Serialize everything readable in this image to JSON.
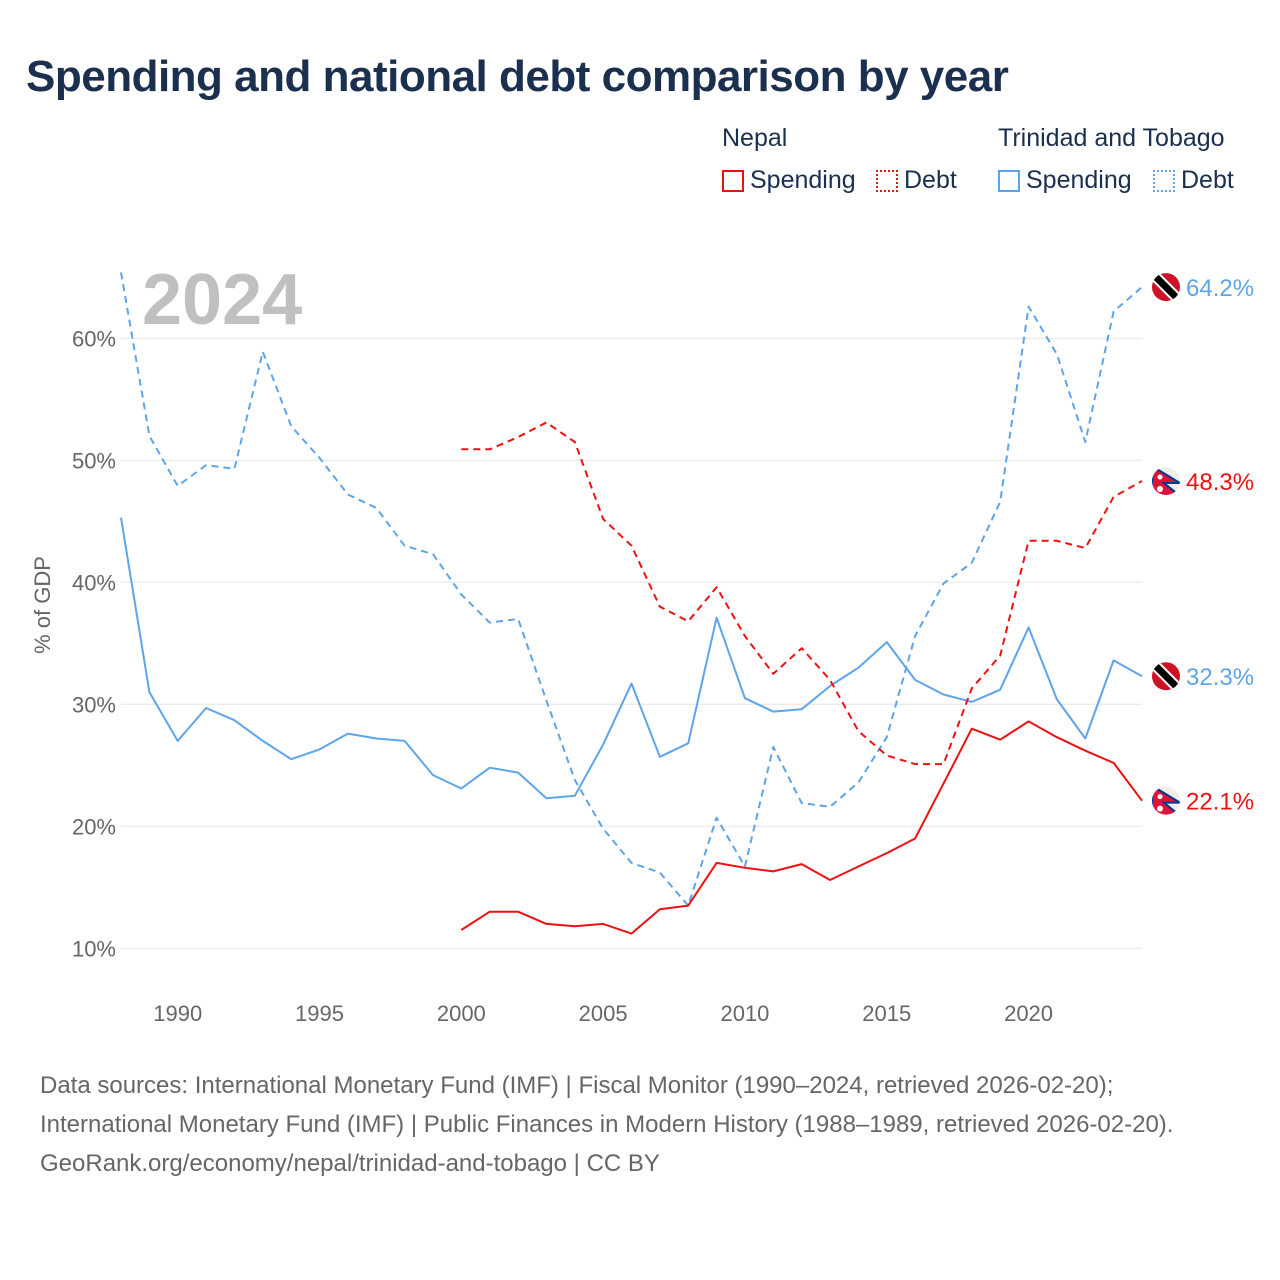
{
  "title": "Spending and national debt comparison by year",
  "legend": {
    "groups": [
      {
        "name": "Nepal",
        "items": [
          "Spending",
          "Debt"
        ]
      },
      {
        "name": "Trinidad and Tobago",
        "items": [
          "Spending",
          "Debt"
        ]
      }
    ]
  },
  "colors": {
    "nepal": "#ee1111",
    "tt": "#5ea4ea",
    "grid": "#e6e6e6",
    "year_label": "#c0c0c0",
    "axis_text": "#666666"
  },
  "chart_data": {
    "type": "line",
    "title": "Spending and national debt comparison by year",
    "ylabel": "% of GDP",
    "xlabel": "",
    "xlim": [
      1988,
      2024
    ],
    "ylim": [
      7.4,
      65.6
    ],
    "year_label": "2024",
    "x_ticks": [
      1990,
      1995,
      2000,
      2005,
      2010,
      2015,
      2020
    ],
    "y_ticks": [
      10,
      20,
      30,
      40,
      50,
      60
    ],
    "y_tick_labels": [
      "10%",
      "20%",
      "30%",
      "40%",
      "50%",
      "60%"
    ],
    "grid": true,
    "series": [
      {
        "name": "Trinidad and Tobago Debt",
        "country": "tt",
        "style": "dashed",
        "end_label": "64.2%",
        "x_start": 1988,
        "values": [
          65.4,
          52.0,
          47.9,
          49.6,
          49.3,
          58.9,
          52.8,
          50.2,
          47.2,
          46.1,
          43.0,
          42.3,
          39.0,
          36.7,
          37.0,
          30.3,
          23.8,
          19.8,
          17.0,
          16.2,
          13.5,
          20.7,
          16.7,
          26.5,
          21.9,
          21.6,
          23.6,
          27.3,
          35.6,
          39.9,
          41.6,
          46.6,
          62.6,
          58.7,
          51.5,
          62.2,
          64.2
        ]
      },
      {
        "name": "Trinidad and Tobago Spending",
        "country": "tt",
        "style": "solid",
        "end_label": "32.3%",
        "x_start": 1988,
        "values": [
          45.3,
          31.0,
          27.0,
          29.7,
          28.7,
          27.0,
          25.5,
          26.3,
          27.6,
          27.2,
          27.0,
          24.2,
          23.1,
          24.8,
          24.4,
          22.3,
          22.5,
          26.7,
          31.7,
          25.7,
          26.8,
          37.1,
          30.5,
          29.4,
          29.6,
          31.5,
          33.0,
          35.1,
          32.0,
          30.8,
          30.2,
          31.2,
          36.3,
          30.4,
          27.2,
          33.6,
          32.3
        ]
      },
      {
        "name": "Nepal Debt",
        "country": "nepal",
        "style": "dashed",
        "end_label": "48.3%",
        "x_start": 2000,
        "values": [
          50.9,
          50.9,
          51.9,
          53.1,
          51.5,
          45.2,
          43.0,
          38.0,
          36.8,
          39.6,
          35.6,
          32.5,
          34.6,
          32.0,
          27.8,
          25.8,
          25.1,
          25.1,
          31.3,
          34.0,
          43.4,
          43.4,
          42.8,
          47.0,
          48.3
        ]
      },
      {
        "name": "Nepal Spending",
        "country": "nepal",
        "style": "solid",
        "end_label": "22.1%",
        "x_start": 2000,
        "values": [
          11.5,
          13.0,
          13.0,
          12.0,
          11.8,
          12.0,
          11.2,
          13.2,
          13.5,
          17.0,
          16.6,
          16.3,
          16.9,
          15.6,
          16.7,
          17.8,
          19.0,
          23.5,
          28.0,
          27.1,
          28.6,
          27.3,
          26.2,
          25.2,
          22.1
        ]
      }
    ]
  },
  "footer": {
    "line1": "Data sources: International Monetary Fund (IMF) | Fiscal Monitor (1990–2024, retrieved 2026-02-20); International Monetary Fund (IMF) | Public Finances in Modern History (1988–1989, retrieved 2026-02-20).",
    "line2": "GeoRank.org/economy/nepal/trinidad-and-tobago | CC BY"
  }
}
